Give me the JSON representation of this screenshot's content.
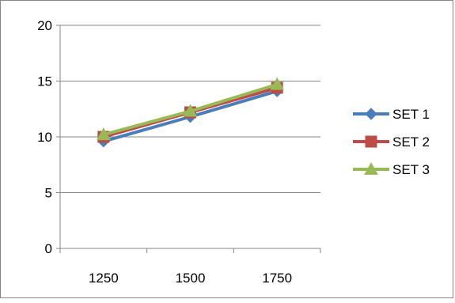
{
  "chart_data": {
    "type": "line",
    "categories": [
      "1250",
      "1500",
      "1750"
    ],
    "ylim": [
      0,
      20
    ],
    "yticks": [
      0,
      5,
      10,
      15,
      20
    ],
    "grid": true,
    "legend_position": "right",
    "series": [
      {
        "name": "SET 1",
        "values": [
          9.6,
          11.8,
          14.1
        ],
        "color": "#4A7EBB",
        "marker": "diamond"
      },
      {
        "name": "SET 2",
        "values": [
          10.0,
          12.2,
          14.4
        ],
        "color": "#BE4B48",
        "marker": "square"
      },
      {
        "name": "SET 3",
        "values": [
          10.2,
          12.3,
          14.7
        ],
        "color": "#98B954",
        "marker": "triangle"
      }
    ]
  }
}
